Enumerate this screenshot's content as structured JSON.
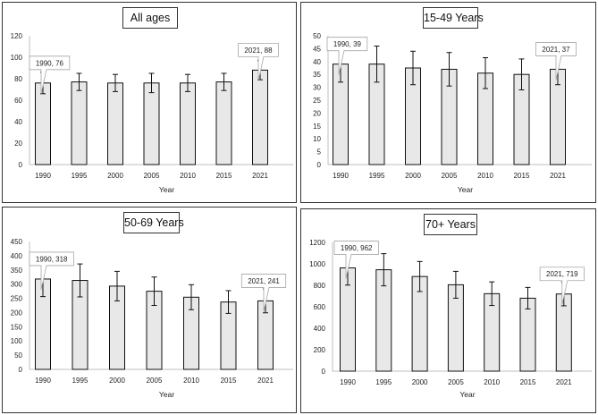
{
  "chart_data": [
    {
      "type": "bar",
      "title": "All ages",
      "xlabel": "Year",
      "ylabel": "",
      "categories": [
        "1990",
        "1995",
        "2000",
        "2005",
        "2010",
        "2015",
        "2021"
      ],
      "values": [
        76,
        77,
        76,
        76,
        76,
        77,
        88
      ],
      "error": [
        10,
        8,
        8,
        9,
        8,
        8,
        9
      ],
      "ylim": [
        0,
        120
      ],
      "yticks": [
        "0",
        "20",
        "40",
        "60",
        "80",
        "100",
        "120"
      ],
      "callouts": [
        {
          "index": 0,
          "text": "1990, 76",
          "side": "left"
        },
        {
          "index": 6,
          "text": "2021, 88",
          "side": "right"
        }
      ]
    },
    {
      "type": "bar",
      "title": "15-49 Years",
      "xlabel": "Year",
      "ylabel": "",
      "categories": [
        "1990",
        "1995",
        "2000",
        "2005",
        "2010",
        "2015",
        "2021"
      ],
      "values": [
        39,
        39,
        37.5,
        37,
        35.5,
        35,
        37
      ],
      "error": [
        7,
        7,
        6.5,
        6.5,
        6,
        6,
        6
      ],
      "ylim": [
        0,
        50
      ],
      "yticks": [
        "0",
        "5",
        "10",
        "15",
        "20",
        "25",
        "30",
        "35",
        "40",
        "45",
        "50"
      ],
      "callouts": [
        {
          "index": 0,
          "text": "1990, 39",
          "side": "left"
        },
        {
          "index": 6,
          "text": "2021, 37",
          "side": "right"
        }
      ]
    },
    {
      "type": "bar",
      "title": "50-69 Years",
      "xlabel": "Year",
      "ylabel": "",
      "categories": [
        "1990",
        "1995",
        "2000",
        "2005",
        "2010",
        "2015",
        "2021"
      ],
      "values": [
        318,
        313,
        293,
        275,
        254,
        237,
        241
      ],
      "error": [
        62,
        58,
        52,
        50,
        44,
        40,
        42
      ],
      "ylim": [
        0,
        450
      ],
      "yticks": [
        "0",
        "50",
        "100",
        "150",
        "200",
        "250",
        "300",
        "350",
        "400",
        "450"
      ],
      "callouts": [
        {
          "index": 0,
          "text": "1990, 318",
          "side": "left"
        },
        {
          "index": 6,
          "text": "2021, 241",
          "side": "right"
        }
      ]
    },
    {
      "type": "bar",
      "title": "70+ Years",
      "xlabel": "Year",
      "ylabel": "",
      "categories": [
        "1990",
        "1995",
        "2000",
        "2005",
        "2010",
        "2015",
        "2021"
      ],
      "values": [
        962,
        945,
        882,
        805,
        722,
        680,
        719
      ],
      "error": [
        160,
        150,
        140,
        125,
        110,
        100,
        110
      ],
      "ylim": [
        0,
        1200
      ],
      "yticks": [
        "0",
        "200",
        "400",
        "600",
        "800",
        "1000",
        "1200"
      ],
      "callouts": [
        {
          "index": 0,
          "text": "1990, 962",
          "side": "left"
        },
        {
          "index": 6,
          "text": "2021, 719",
          "side": "right"
        }
      ]
    }
  ],
  "colors": {
    "bar_fill": "#e8e8e8",
    "bar_stroke": "#111111",
    "axis": "#bfbfbf",
    "text": "#222222",
    "callout_border": "#a6a6a6"
  }
}
